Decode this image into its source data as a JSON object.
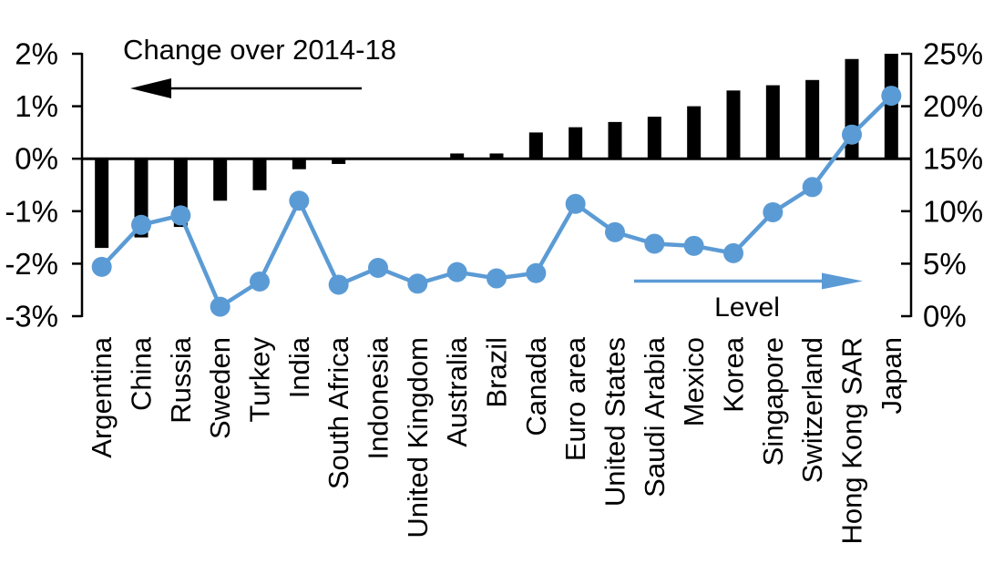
{
  "chart_data": {
    "type": "combo-bar-line",
    "title": "",
    "categories": [
      "Argentina",
      "China",
      "Russia",
      "Sweden",
      "Turkey",
      "India",
      "South Africa",
      "Indonesia",
      "United Kingdom",
      "Australia",
      "Brazil",
      "Canada",
      "Euro area",
      "United States",
      "Saudi Arabia",
      "Mexico",
      "Korea",
      "Singapore",
      "Switzerland",
      "Hong Kong SAR",
      "Japan"
    ],
    "series": [
      {
        "name": "Change over 2014-18",
        "type": "bar",
        "axis": "left",
        "color": "#000000",
        "values": [
          -1.7,
          -1.5,
          -1.3,
          -0.8,
          -0.6,
          -0.2,
          -0.1,
          0.0,
          0.0,
          0.1,
          0.1,
          0.5,
          0.6,
          0.7,
          0.8,
          1.0,
          1.3,
          1.4,
          1.5,
          1.9,
          2.0
        ]
      },
      {
        "name": "Level",
        "type": "line",
        "axis": "right",
        "color": "#5B9BD5",
        "values": [
          4.7,
          8.7,
          9.6,
          0.9,
          3.3,
          11.0,
          3.0,
          4.6,
          3.1,
          4.2,
          3.6,
          4.1,
          10.7,
          8.0,
          6.9,
          6.7,
          6.0,
          9.9,
          12.3,
          17.3,
          21.0
        ]
      }
    ],
    "left_axis": {
      "min": -3,
      "max": 2,
      "tick_step": 1,
      "tick_values": [
        2,
        1,
        0,
        -1,
        -2,
        -3
      ],
      "tick_labels": [
        "2%",
        "1%",
        "0%",
        "-1%",
        "-2%",
        "-3%"
      ]
    },
    "right_axis": {
      "min": 0,
      "max": 25,
      "tick_step": 5,
      "tick_values": [
        25,
        20,
        15,
        10,
        5,
        0
      ],
      "tick_labels": [
        "25%",
        "20%",
        "15%",
        "10%",
        "5%",
        "0%"
      ]
    },
    "annotations": {
      "bar_series_label": {
        "text": "Change over 2014-18",
        "arrow_direction": "left",
        "color": "#000000"
      },
      "line_series_label": {
        "text": "Level",
        "arrow_direction": "right",
        "color": "#5B9BD5"
      }
    },
    "grid": "off",
    "legend_position": "in-plot-arrow-annotations",
    "background": "#FFFFFF"
  }
}
